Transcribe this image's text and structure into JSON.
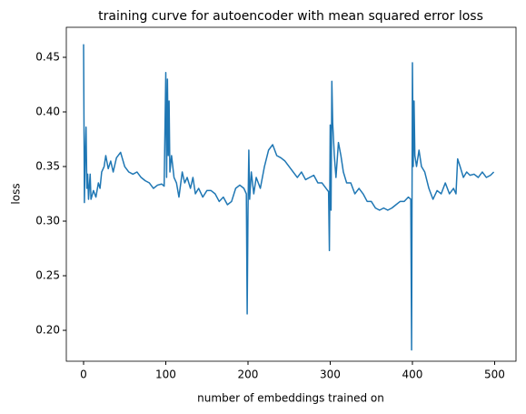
{
  "chart_data": {
    "type": "line",
    "title": "training curve for autoencoder with mean squared error loss",
    "xlabel": "number of embeddings trained on",
    "ylabel": "loss",
    "color": "#1f77b4",
    "x": [
      0,
      1,
      2,
      3,
      4,
      5,
      6,
      8,
      9,
      12,
      15,
      18,
      20,
      22,
      25,
      27,
      30,
      33,
      36,
      40,
      45,
      50,
      55,
      60,
      65,
      70,
      75,
      80,
      85,
      90,
      95,
      98,
      100,
      101,
      102,
      103,
      104,
      105,
      107,
      110,
      113,
      116,
      120,
      123,
      126,
      130,
      133,
      136,
      140,
      145,
      150,
      155,
      160,
      165,
      170,
      175,
      180,
      185,
      190,
      195,
      198,
      199,
      200,
      201,
      202,
      204,
      207,
      210,
      215,
      220,
      225,
      230,
      235,
      240,
      245,
      250,
      255,
      260,
      265,
      270,
      275,
      280,
      285,
      290,
      295,
      298,
      299,
      300,
      301,
      302,
      303,
      305,
      307,
      310,
      313,
      316,
      320,
      325,
      330,
      335,
      340,
      345,
      350,
      355,
      360,
      365,
      370,
      375,
      380,
      385,
      390,
      395,
      398,
      399,
      400,
      401,
      402,
      403,
      405,
      408,
      411,
      415,
      420,
      425,
      430,
      435,
      440,
      445,
      450,
      453,
      455,
      458,
      462,
      466,
      470,
      475,
      480,
      485,
      490,
      495,
      499
    ],
    "values": [
      0.462,
      0.317,
      0.36,
      0.386,
      0.33,
      0.343,
      0.32,
      0.343,
      0.32,
      0.328,
      0.322,
      0.335,
      0.33,
      0.345,
      0.35,
      0.36,
      0.348,
      0.355,
      0.345,
      0.358,
      0.363,
      0.35,
      0.345,
      0.343,
      0.345,
      0.34,
      0.337,
      0.335,
      0.33,
      0.333,
      0.334,
      0.332,
      0.436,
      0.34,
      0.43,
      0.36,
      0.41,
      0.345,
      0.36,
      0.34,
      0.335,
      0.322,
      0.345,
      0.335,
      0.34,
      0.33,
      0.34,
      0.325,
      0.33,
      0.322,
      0.328,
      0.328,
      0.325,
      0.318,
      0.322,
      0.315,
      0.318,
      0.33,
      0.333,
      0.33,
      0.325,
      0.215,
      0.31,
      0.365,
      0.32,
      0.345,
      0.325,
      0.34,
      0.33,
      0.35,
      0.365,
      0.37,
      0.36,
      0.358,
      0.355,
      0.35,
      0.345,
      0.34,
      0.345,
      0.338,
      0.34,
      0.342,
      0.335,
      0.335,
      0.33,
      0.327,
      0.273,
      0.388,
      0.31,
      0.428,
      0.39,
      0.36,
      0.34,
      0.372,
      0.36,
      0.345,
      0.335,
      0.335,
      0.325,
      0.33,
      0.325,
      0.318,
      0.318,
      0.312,
      0.31,
      0.312,
      0.31,
      0.312,
      0.315,
      0.318,
      0.318,
      0.322,
      0.32,
      0.182,
      0.445,
      0.35,
      0.41,
      0.36,
      0.35,
      0.365,
      0.35,
      0.345,
      0.33,
      0.32,
      0.328,
      0.325,
      0.335,
      0.325,
      0.33,
      0.325,
      0.357,
      0.35,
      0.34,
      0.345,
      0.342,
      0.343,
      0.34,
      0.345,
      0.34,
      0.342,
      0.345
    ],
    "xlim": [
      -21,
      526
    ],
    "ylim": [
      0.1717,
      0.4775
    ],
    "xticks": [
      0,
      100,
      200,
      300,
      400,
      500
    ],
    "yticks": [
      {
        "value": 0.2,
        "label": "0.20"
      },
      0.25,
      {
        "value": 0.3,
        "label": "0.30"
      },
      0.35,
      {
        "value": 0.4,
        "label": "0.40"
      },
      0.45
    ]
  }
}
